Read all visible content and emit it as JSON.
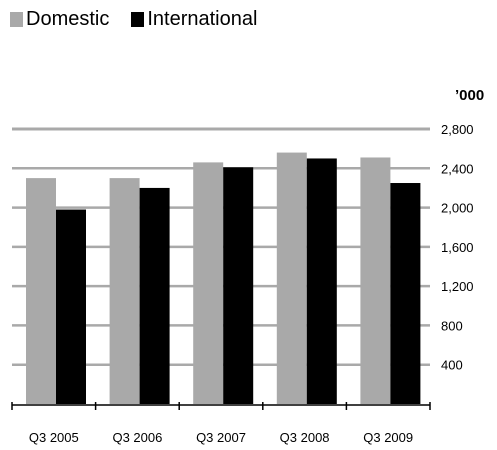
{
  "chart_data": {
    "type": "bar",
    "categories": [
      "Q3 2005",
      "Q3 2006",
      "Q3 2007",
      "Q3 2008",
      "Q3 2009"
    ],
    "series": [
      {
        "name": "Domestic",
        "values": [
          2300,
          2300,
          2460,
          2560,
          2510
        ]
      },
      {
        "name": "International",
        "values": [
          1980,
          2200,
          2410,
          2500,
          2250
        ]
      }
    ],
    "yticks": [
      400,
      800,
      1200,
      1600,
      2000,
      2400,
      2800
    ],
    "ytick_labels": [
      "400",
      "800",
      "1,200",
      "1,600",
      "2,000",
      "2,400",
      "2,800"
    ],
    "ylim": [
      0,
      2800
    ],
    "y_unit": "’000",
    "yaxis_position": "right",
    "gridlines": "major (heavy, grey)",
    "legend_position": "top-left",
    "colors": {
      "Domestic": "#a9a9a9",
      "International": "#000000",
      "grid": "#a9a9a9"
    }
  }
}
